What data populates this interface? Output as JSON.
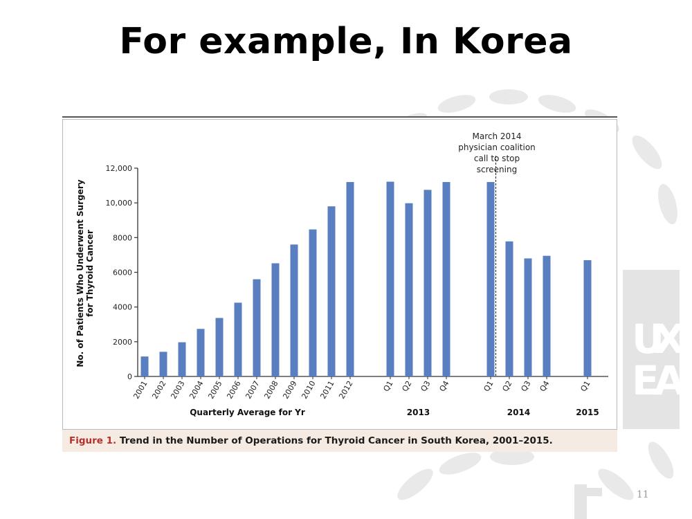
{
  "slide": {
    "title": "For example, In Korea",
    "page_number": "11",
    "watermark_letters": [
      "U",
      "X",
      "E",
      "A"
    ]
  },
  "figure": {
    "caption_label": "Figure 1.",
    "caption_text": "Trend in the Number of Operations for Thyroid Cancer in South Korea, 2001–2015."
  },
  "chart_data": {
    "type": "bar",
    "ylabel": "No. of Patients Who Underwent Surgery for Thyroid Cancer",
    "ylabel_lines": [
      "No. of Patients Who Underwent Surgery",
      "for Thyroid Cancer"
    ],
    "ylim": [
      0,
      12000
    ],
    "yticks": [
      {
        "value": 0,
        "label": "0"
      },
      {
        "value": 2000,
        "label": "2000"
      },
      {
        "value": 4000,
        "label": "4000"
      },
      {
        "value": 6000,
        "label": "6000"
      },
      {
        "value": 8000,
        "label": "8000"
      },
      {
        "value": 10000,
        "label": "10,000"
      },
      {
        "value": 12000,
        "label": "12,000"
      }
    ],
    "grid": false,
    "bar_color": "#5a7fc0",
    "groups": [
      {
        "label": "Quarterly Average for Yr",
        "categories": [
          "2001",
          "2002",
          "2003",
          "2004",
          "2005",
          "2006",
          "2007",
          "2008",
          "2009",
          "2010",
          "2011",
          "2012"
        ]
      },
      {
        "label": "2013",
        "categories": [
          "Q1",
          "Q2",
          "Q3",
          "Q4"
        ]
      },
      {
        "label": "2014",
        "categories": [
          "Q1",
          "Q2",
          "Q3",
          "Q4"
        ]
      },
      {
        "label": "2015",
        "categories": [
          "Q1"
        ]
      }
    ],
    "values": [
      1150,
      1420,
      1970,
      2740,
      3370,
      4250,
      5600,
      6520,
      7600,
      8470,
      9800,
      11200,
      11220,
      9980,
      10750,
      11200,
      11200,
      7780,
      6800,
      6950,
      6700
    ],
    "annotation": {
      "lines": [
        "March 2014",
        "physician coalition",
        "call to stop",
        "screening"
      ],
      "after_index": 16
    }
  }
}
